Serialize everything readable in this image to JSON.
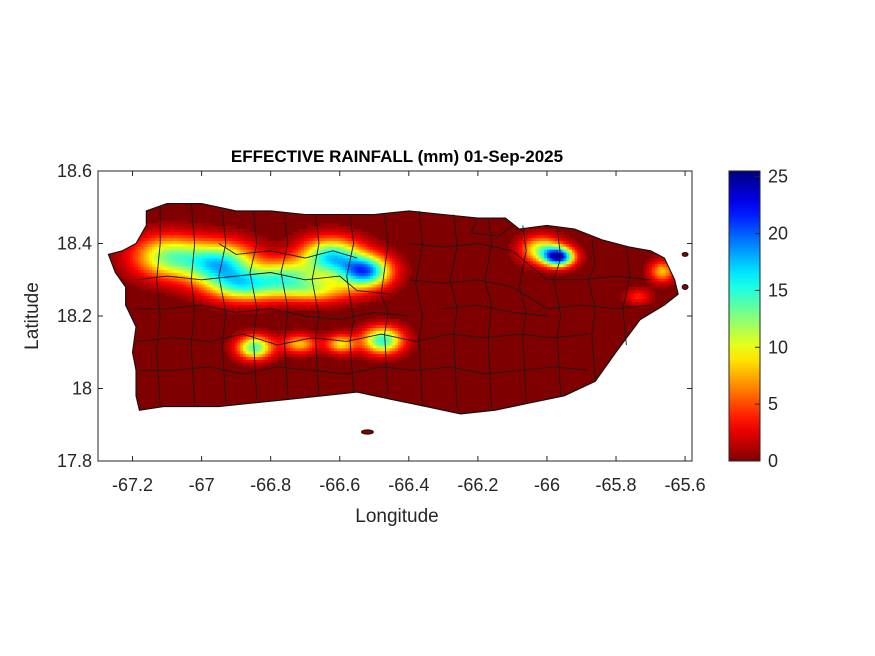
{
  "title": "EFFECTIVE RAINFALL (mm) 01-Sep-2025",
  "colors": {
    "land_base": "#7f0000",
    "municipality_border": "#1a1a1a",
    "axis": "#262626",
    "ocean": "#ffffff"
  },
  "chart_data": {
    "type": "heatmap",
    "title": "EFFECTIVE RAINFALL (mm) 01-Sep-2025",
    "xlabel": "Longitude",
    "ylabel": "Latitude",
    "xlim": [
      -67.3,
      -65.58
    ],
    "ylim": [
      17.8,
      18.6
    ],
    "x_ticks": [
      -67.2,
      -67,
      -66.8,
      -66.6,
      -66.4,
      -66.2,
      -66,
      -65.8,
      -65.6
    ],
    "y_ticks": [
      17.8,
      18,
      18.2,
      18.4,
      18.6
    ],
    "x_tick_labels": [
      "-67.2",
      "-67",
      "-66.8",
      "-66.6",
      "-66.4",
      "-66.2",
      "-66",
      "-65.8",
      "-65.6"
    ],
    "y_tick_labels": [
      "17.8",
      "18",
      "18.2",
      "18.4",
      "18.6"
    ],
    "colormap": "jet",
    "colorbar": {
      "limits": [
        0,
        25.5
      ],
      "ticks": [
        0,
        5,
        10,
        15,
        20,
        25
      ],
      "tick_labels": [
        "0",
        "5",
        "10",
        "15",
        "20",
        "25"
      ],
      "placement": "right"
    },
    "background_value": 0,
    "hotspots": [
      {
        "lon": -67.1,
        "lat": 18.36,
        "peak": 12,
        "sx": 0.07,
        "sy": 0.04
      },
      {
        "lon": -66.95,
        "lat": 18.34,
        "peak": 16,
        "sx": 0.07,
        "sy": 0.04
      },
      {
        "lon": -66.88,
        "lat": 18.28,
        "peak": 12,
        "sx": 0.07,
        "sy": 0.03
      },
      {
        "lon": -66.76,
        "lat": 18.31,
        "peak": 10,
        "sx": 0.06,
        "sy": 0.03
      },
      {
        "lon": -66.63,
        "lat": 18.36,
        "peak": 16,
        "sx": 0.06,
        "sy": 0.035
      },
      {
        "lon": -66.53,
        "lat": 18.32,
        "peak": 19,
        "sx": 0.05,
        "sy": 0.03
      },
      {
        "lon": -66.68,
        "lat": 18.27,
        "peak": 9,
        "sx": 0.08,
        "sy": 0.025
      },
      {
        "lon": -66.85,
        "lat": 18.11,
        "peak": 14,
        "sx": 0.035,
        "sy": 0.022
      },
      {
        "lon": -66.72,
        "lat": 18.12,
        "peak": 8,
        "sx": 0.035,
        "sy": 0.018
      },
      {
        "lon": -66.6,
        "lat": 18.12,
        "peak": 9,
        "sx": 0.03,
        "sy": 0.018
      },
      {
        "lon": -66.48,
        "lat": 18.13,
        "peak": 15,
        "sx": 0.04,
        "sy": 0.025
      },
      {
        "lon": -66.02,
        "lat": 18.38,
        "peak": 11,
        "sx": 0.04,
        "sy": 0.025
      },
      {
        "lon": -65.97,
        "lat": 18.36,
        "peak": 22,
        "sx": 0.03,
        "sy": 0.018
      },
      {
        "lon": -65.67,
        "lat": 18.32,
        "peak": 8,
        "sx": 0.025,
        "sy": 0.02
      },
      {
        "lon": -65.74,
        "lat": 18.25,
        "peak": 4,
        "sx": 0.025,
        "sy": 0.015
      }
    ]
  }
}
